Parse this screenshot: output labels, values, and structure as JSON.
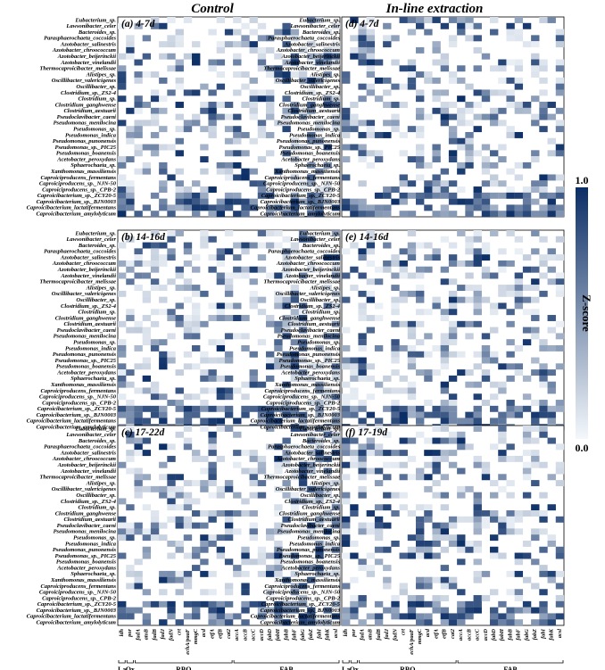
{
  "columns": [
    "Control",
    "In-line extraction"
  ],
  "panels": [
    {
      "label": "(a) 4-7d",
      "column": "Control",
      "seed": 11
    },
    {
      "label": "(b) 14-16d",
      "column": "Control",
      "seed": 23
    },
    {
      "label": "(c) 17-22d",
      "column": "Control",
      "seed": 37
    },
    {
      "label": "(d) 4-7d",
      "column": "In-line extraction",
      "seed": 41
    },
    {
      "label": "(e) 14-16d",
      "column": "In-line extraction",
      "seed": 53
    },
    {
      "label": "(f) 17-19d",
      "column": "In-line extraction",
      "seed": 67
    }
  ],
  "colorbar": {
    "title": "Z-score",
    "min_label": "0.0",
    "max_label": "1.0",
    "low_color": "#f4f8fc",
    "high_color": "#0b2e66"
  },
  "chart_data": {
    "type": "heatmap",
    "x_groups": [
      {
        "name": "La",
        "genes": [
          "ldh"
        ]
      },
      {
        "name": "Ox",
        "genes": [
          "por"
        ]
      },
      {
        "name": "RBO",
        "genes": [
          "fadA",
          "atoB",
          "fadB",
          "fadJ",
          "fadN",
          "crt",
          "echA/paaF",
          "mmgC",
          "acd",
          "etfA",
          "etfB",
          "cat2"
        ]
      },
      {
        "name": "FAB",
        "genes": [
          "accA",
          "accB",
          "accC",
          "accD",
          "fabD",
          "fabH",
          "fabB",
          "fabF",
          "fabG",
          "fabZ",
          "fabI",
          "fabK",
          "acsl"
        ]
      }
    ],
    "rows": [
      "Eubacterium_sp.",
      "Lawsonibacter_celer",
      "Bacteroides_sp.",
      "Parasphaerochaeta_coccoides",
      "Azotobacter_salinestris",
      "Azotobacter_chroococcum",
      "Azotobacter_beijerinckii",
      "Azotobacter_vinelandii",
      "Thermocaproicibacter_melissae",
      "Alistipes_sp.",
      "Oscillibacter_valericigenes",
      "Oscillibacter_sp.",
      "Clostridium_sp._ZS2-4",
      "Clostridium_sp.",
      "Clostridium_ganghwense",
      "Clostridium_aestuarii",
      "Pseudoclavibacter_caeni",
      "Pseudomonas_menilocina",
      "Pseudomonas_sp.",
      "Pseudomonas_indica",
      "Pseudomonas_punonensis",
      "Pseudomonas_sp._PIC25",
      "Pseudomonas_boanensis",
      "Acetobacter_peroxydans",
      "Sphaerochaeta_sp.",
      "Xanthomonas_massiliensis",
      "Caproiciproducens_fermentans",
      "Caproiciproducens_sp._NJN-50",
      "Caproiciproducens_sp._CPB-2",
      "Caproicibacterium_sp._ZCY20-5",
      "Caproicibacterium_sp._BJN0003",
      "Caproicibacterium_lactatifermentans",
      "Caproicibacterium_amylolyticum"
    ],
    "zlim": [
      0.0,
      1.0
    ],
    "zlabel": "Z-score",
    "values_note": ""
  }
}
